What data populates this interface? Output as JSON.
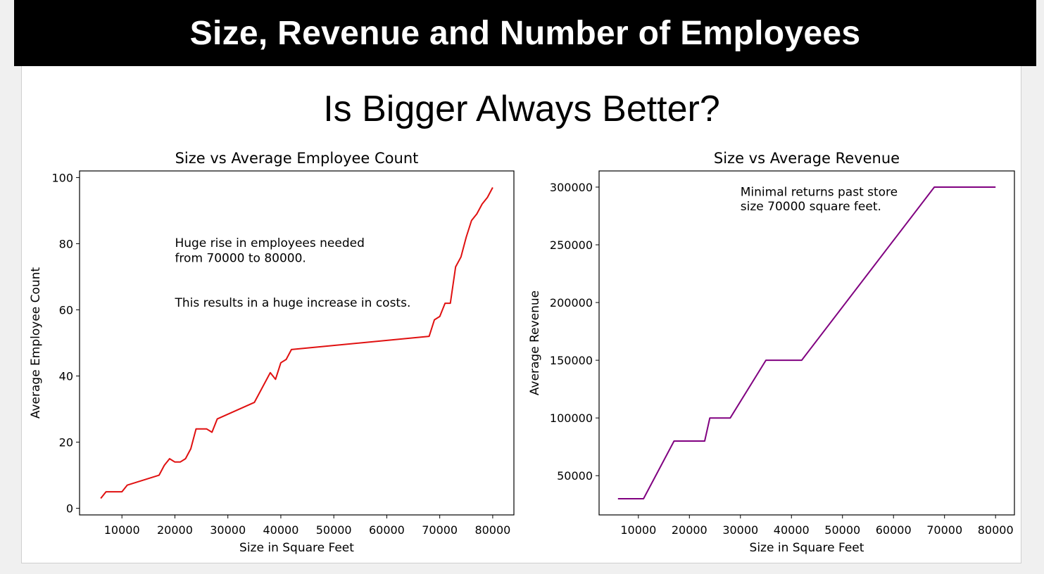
{
  "header": {
    "title": "Size, Revenue and Number of Employees"
  },
  "subtitle": "Is Bigger Always Better?",
  "chart_data": [
    {
      "id": "employees",
      "type": "line",
      "title": "Size vs Average Employee Count",
      "xlabel": "Size in Square Feet",
      "ylabel": "Average Employee Count",
      "xlim": [
        2000,
        84000
      ],
      "ylim": [
        -2,
        102
      ],
      "xticks": [
        10000,
        20000,
        30000,
        40000,
        50000,
        60000,
        70000,
        80000
      ],
      "yticks": [
        0,
        20,
        40,
        60,
        80,
        100
      ],
      "line_color": "#e01010",
      "annotations": [
        {
          "text": "Huge rise in employees needed",
          "x": 20000,
          "y": 79
        },
        {
          "text": "from 70000 to 80000.",
          "x": 20000,
          "y": 74.5
        },
        {
          "text": "This results in a huge increase in costs.",
          "x": 20000,
          "y": 61
        }
      ],
      "series": [
        {
          "x": [
            6000,
            7000,
            8000,
            9000,
            10000,
            11000,
            17000,
            18000,
            19000,
            20000,
            21000,
            22000,
            23000,
            24000,
            25000,
            26000,
            27000,
            28000,
            35000,
            38000,
            39000,
            40000,
            41000,
            42000,
            68000,
            69000,
            70000,
            71000,
            72000,
            73000,
            74000,
            75000,
            76000,
            77000,
            78000,
            79000,
            80000
          ],
          "y": [
            3,
            5,
            5,
            5,
            5,
            7,
            10,
            13,
            15,
            14,
            14,
            15,
            18,
            24,
            24,
            24,
            23,
            27,
            32,
            41,
            39,
            44,
            45,
            48,
            52,
            57,
            58,
            62,
            62,
            73,
            76,
            82,
            87,
            89,
            92,
            94,
            97
          ]
        }
      ]
    },
    {
      "id": "revenue",
      "type": "line",
      "title": "Size vs Average Revenue",
      "xlabel": "Size in Square Feet",
      "ylabel": "Average Revenue",
      "xlim": [
        2300,
        83700
      ],
      "ylim": [
        16000,
        314000
      ],
      "xticks": [
        10000,
        20000,
        30000,
        40000,
        50000,
        60000,
        70000,
        80000
      ],
      "yticks": [
        50000,
        100000,
        150000,
        200000,
        250000,
        300000
      ],
      "line_color": "#800080",
      "annotations": [
        {
          "text": "Minimal returns past store",
          "x": 30000,
          "y": 292500
        },
        {
          "text": "size 70000 square feet.",
          "x": 30000,
          "y": 280000
        }
      ],
      "series": [
        {
          "x": [
            6000,
            11000,
            17000,
            23000,
            24000,
            28000,
            35000,
            42000,
            68000,
            80000
          ],
          "y": [
            30000,
            30000,
            80000,
            80000,
            100000,
            100000,
            150000,
            150000,
            300000,
            300000
          ]
        }
      ]
    }
  ]
}
